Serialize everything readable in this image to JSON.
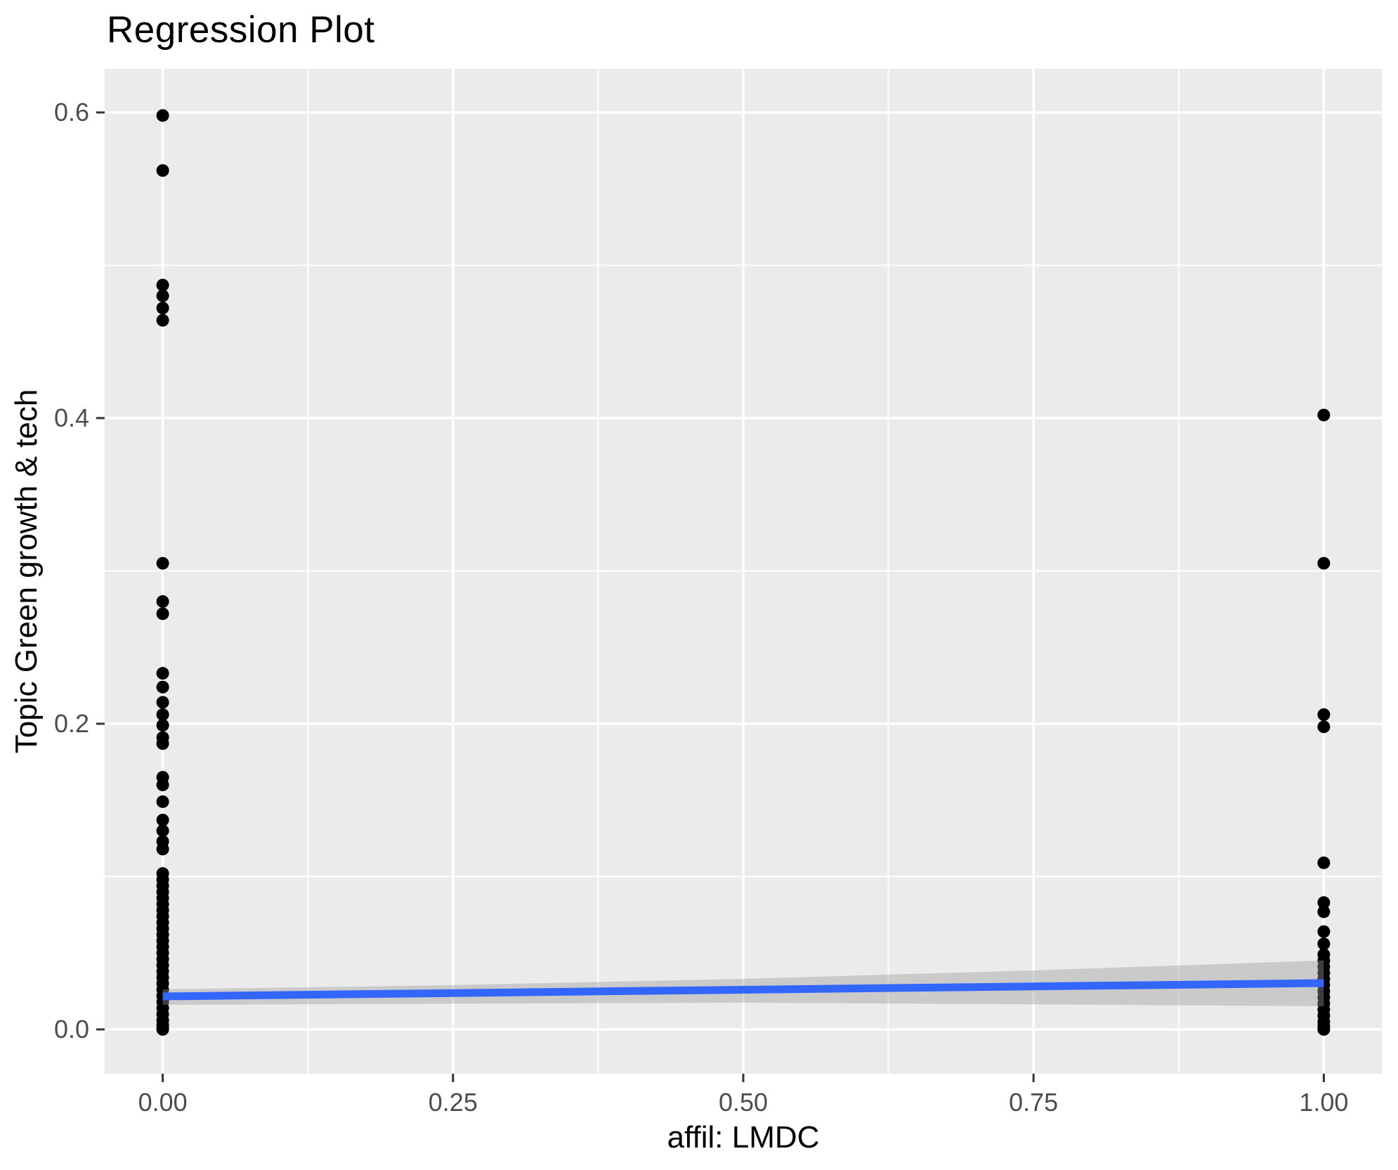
{
  "chart_data": {
    "type": "scatter",
    "title": "Regression Plot",
    "xlabel": "affil: LMDC",
    "ylabel": "Topic Green growth & tech",
    "legend": false,
    "grid": true,
    "x_axis": {
      "range": [
        -0.05,
        1.05
      ],
      "ticks": [
        0,
        0.25,
        0.5,
        0.75,
        1
      ],
      "tick_labels": [
        "0.00",
        "0.25",
        "0.50",
        "0.75",
        "1.00"
      ],
      "minor_ticks": [
        0.125,
        0.375,
        0.625,
        0.875
      ]
    },
    "y_axis": {
      "range": [
        -0.029,
        0.6285
      ],
      "ticks": [
        0,
        0.2,
        0.4,
        0.6
      ],
      "tick_labels": [
        "0.0",
        "0.2",
        "0.4",
        "0.6"
      ],
      "minor_ticks": [
        0.1,
        0.3,
        0.5
      ]
    },
    "style": {
      "panel_bg": "#EBEBEB",
      "grid_color": "#FFFFFF",
      "major_grid_width": 3.5,
      "minor_grid_width": 2,
      "point_color": "#000000",
      "point_radius": 9,
      "line_color": "#3366FF",
      "line_width": 11,
      "band_fill": "rgba(153,153,153,0.40)",
      "tick_label_color": "#4D4D4D",
      "tick_mark_color": "#333333"
    },
    "series": [
      {
        "name": "affil LMDC = 0",
        "x": 0,
        "values": [
          0.598,
          0.562,
          0.487,
          0.48,
          0.472,
          0.464,
          0.305,
          0.28,
          0.272,
          0.233,
          0.224,
          0.214,
          0.206,
          0.199,
          0.191,
          0.187,
          0.165,
          0.16,
          0.149,
          0.137,
          0.13,
          0.123,
          0.118,
          0.102,
          0.098,
          0.094,
          0.09,
          0.086,
          0.082,
          0.078,
          0.074,
          0.07,
          0.066,
          0.062,
          0.058,
          0.054,
          0.05,
          0.046,
          0.042,
          0.038,
          0.034,
          0.03,
          0.026,
          0.022,
          0.018,
          0.014,
          0.01,
          0.006,
          0.003,
          0.001,
          0
        ]
      },
      {
        "name": "affil LMDC = 1",
        "x": 1,
        "values": [
          0.402,
          0.305,
          0.206,
          0.198,
          0.109,
          0.083,
          0.077,
          0.064,
          0.056,
          0.049,
          0.045,
          0.041,
          0.037,
          0.033,
          0.029,
          0.025,
          0.021,
          0.017,
          0.013,
          0.009,
          0.005,
          0.002,
          0
        ]
      }
    ],
    "regression_line": {
      "x": [
        0,
        1
      ],
      "y": [
        0.0216,
        0.0303
      ]
    },
    "confidence_band": {
      "x": [
        0,
        0.25,
        0.5,
        0.75,
        1
      ],
      "upper": [
        0.0262,
        0.029,
        0.0331,
        0.0386,
        0.0451
      ],
      "lower": [
        0.0161,
        0.0168,
        0.0175,
        0.0164,
        0.0152
      ]
    }
  }
}
